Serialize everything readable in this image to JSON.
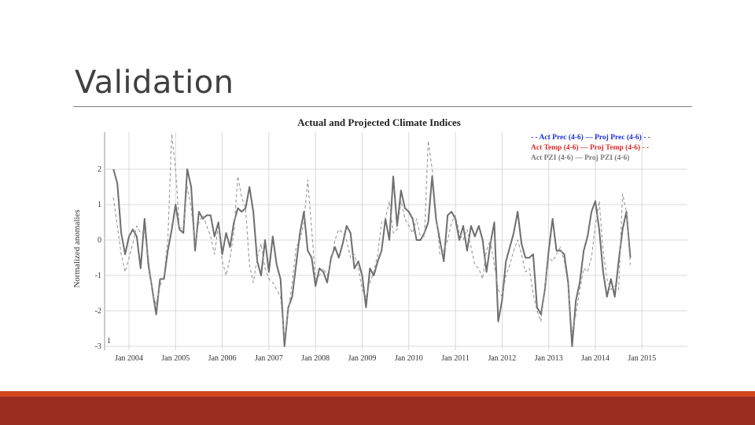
{
  "slide": {
    "title": "Validation"
  },
  "colors": {
    "title_rule": "#7f7f7f",
    "footer_top": "#d0471f",
    "footer": "#9b2d20",
    "prec": "#1f2fd0",
    "temp": "#d92b2b",
    "pzi": "#7a7a7a"
  },
  "chart_data": {
    "type": "line",
    "title": "Actual and Projected Climate Indices",
    "xlabel": "",
    "ylabel": "Normalized anomalies",
    "ylim": [
      -3.0,
      3.0
    ],
    "yticks": [
      "2",
      "1",
      "0",
      "-1",
      "-2",
      "-3"
    ],
    "xticks": [
      "Jan 2004",
      "Jan 2005",
      "Jan 2006",
      "Jan 2007",
      "Jan 2008",
      "Jan 2009",
      "Jan 2010",
      "Jan 2011",
      "Jan 2012",
      "Jan 2013",
      "Jan 2014",
      "Jan 2015"
    ],
    "xrange": [
      "2003-09",
      "2015-12"
    ],
    "grid": true,
    "legend_position": "top-right",
    "legend": [
      {
        "text": "- - Act Prec (4-6) — Proj Prec (4-6) - -",
        "color": "#1f2fd0"
      },
      {
        "text": "Act Temp (4-6) — Proj Temp (4-6) - -",
        "color": "#d92b2b"
      },
      {
        "text": "Act PZI (4-6) — Proj PZI (4-6)",
        "color": "#7a7a7a"
      }
    ],
    "annotations": [
      "1"
    ],
    "series": [
      {
        "name": "Proj PZI (4-6)",
        "style": "solid",
        "values": [
          2.0,
          1.6,
          0.2,
          -0.4,
          0.1,
          0.3,
          0.1,
          -0.8,
          0.6,
          -0.7,
          -1.4,
          -2.1,
          -1.1,
          -1.1,
          -0.3,
          0.3,
          1.0,
          0.3,
          0.2,
          2.0,
          1.5,
          -0.3,
          0.8,
          0.6,
          0.7,
          0.7,
          0.1,
          0.5,
          -0.4,
          0.2,
          -0.2,
          0.5,
          0.9,
          0.8,
          0.9,
          1.5,
          0.8,
          -0.6,
          -1.0,
          0.0,
          -0.9,
          0.1,
          -0.7,
          -1.1,
          -3.0,
          -1.9,
          -1.6,
          -0.7,
          0.2,
          0.8,
          -0.3,
          -0.5,
          -1.3,
          -0.8,
          -0.9,
          -1.2,
          -0.5,
          -0.2,
          -0.5,
          -0.1,
          0.4,
          0.2,
          -0.8,
          -0.6,
          -1.0,
          -1.9,
          -0.8,
          -1.0,
          -0.6,
          -0.3,
          0.6,
          0.0,
          1.8,
          0.4,
          1.4,
          0.9,
          0.8,
          0.6,
          0.0,
          0.0,
          0.2,
          0.5,
          1.8,
          0.6,
          0.0,
          -0.6,
          0.7,
          0.8,
          0.6,
          0.0,
          0.4,
          -0.3,
          0.4,
          0.1,
          0.4,
          0.0,
          -0.9,
          -0.1,
          0.5,
          -2.3,
          -1.7,
          -0.6,
          -0.2,
          0.2,
          0.8,
          -0.1,
          -0.5,
          -0.5,
          -0.4,
          -1.9,
          -2.1,
          -1.4,
          -0.3,
          0.6,
          -0.3,
          -0.3,
          -0.4,
          -1.2,
          -3.0,
          -1.7,
          -1.2,
          -0.3,
          0.1,
          0.8,
          1.1,
          0.3,
          -0.9,
          -1.6,
          -1.1,
          -1.6,
          -0.6,
          0.3,
          0.8,
          -0.5
        ]
      },
      {
        "name": "Act PZI (4-6)",
        "style": "dashed",
        "values": [
          1.2,
          0.4,
          -0.4,
          -0.9,
          -0.5,
          -0.1,
          0.4,
          0.2,
          0.2,
          -0.5,
          -1.5,
          -1.8,
          -1.3,
          -1.0,
          0.0,
          3.0,
          2.0,
          0.3,
          0.4,
          1.5,
          0.9,
          -0.1,
          0.5,
          0.7,
          0.4,
          0.1,
          -0.4,
          0.4,
          -0.6,
          -1.0,
          -0.5,
          0.2,
          1.8,
          1.2,
          0.9,
          -0.7,
          -1.2,
          -0.5,
          -0.1,
          -0.8,
          -1.1,
          -1.2,
          -1.4,
          -1.6,
          -2.8,
          -2.0,
          -1.2,
          -0.2,
          0.0,
          0.5,
          1.7,
          0.3,
          -1.1,
          -1.0,
          -0.8,
          -1.0,
          -0.6,
          0.0,
          0.3,
          0.2,
          0.0,
          -0.5,
          -0.4,
          -0.8,
          -1.4,
          -1.6,
          -1.2,
          -0.9,
          -0.4,
          0.5,
          0.6,
          1.1,
          0.2,
          0.3,
          1.1,
          0.6,
          0.4,
          0.2,
          0.6,
          0.1,
          0.1,
          2.8,
          2.0,
          0.8,
          -0.4,
          -0.3,
          0.0,
          0.5,
          0.7,
          0.2,
          0.0,
          0.3,
          -0.2,
          -0.7,
          -0.8,
          -1.1,
          -0.3,
          0.0,
          -0.7,
          -1.4,
          -1.6,
          -1.0,
          -0.7,
          -0.3,
          0.0,
          -0.4,
          -0.9,
          -0.8,
          -1.5,
          -2.0,
          -2.3,
          -1.3,
          -0.5,
          -0.6,
          -0.4,
          -0.2,
          -0.6,
          -1.3,
          -2.6,
          -2.1,
          -1.4,
          -0.8,
          -0.9,
          -0.5,
          0.4,
          1.1,
          -0.3,
          -1.1,
          -1.4,
          -1.3,
          -1.4,
          1.3,
          0.8,
          -0.7
        ]
      }
    ]
  }
}
